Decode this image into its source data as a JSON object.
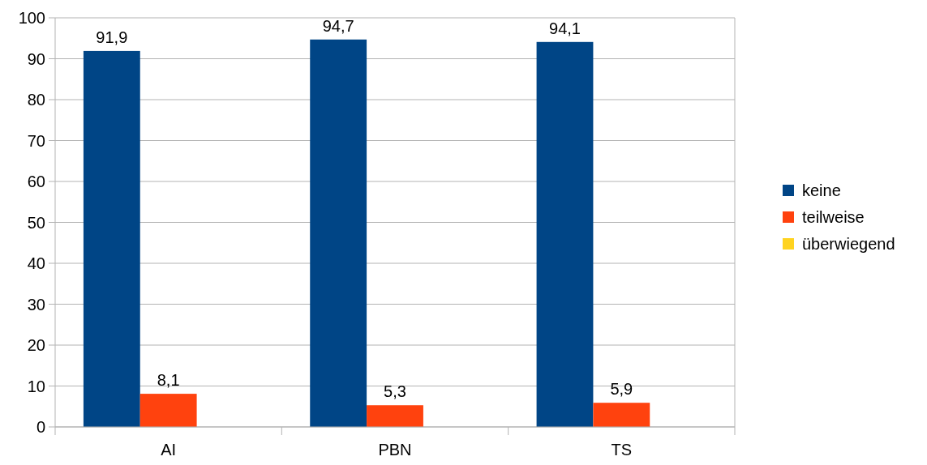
{
  "chart_data": {
    "type": "bar",
    "categories": [
      "AI",
      "PBN",
      "TS"
    ],
    "series": [
      {
        "name": "keine",
        "color": "#004586",
        "values": [
          91.9,
          94.7,
          94.1
        ],
        "value_labels": [
          "91,9",
          "94,7",
          "94,1"
        ]
      },
      {
        "name": "teilweise",
        "color": "#ff420e",
        "values": [
          8.1,
          5.3,
          5.9
        ],
        "value_labels": [
          "8,1",
          "5,3",
          "5,9"
        ]
      },
      {
        "name": "überwiegend",
        "color": "#ffd320",
        "values": [
          null,
          null,
          null
        ],
        "value_labels": [
          null,
          null,
          null
        ]
      }
    ],
    "ylim": [
      0,
      100
    ],
    "yticks": [
      0,
      10,
      20,
      30,
      40,
      50,
      60,
      70,
      80,
      90,
      100
    ],
    "grid": "y",
    "legend": "right"
  }
}
